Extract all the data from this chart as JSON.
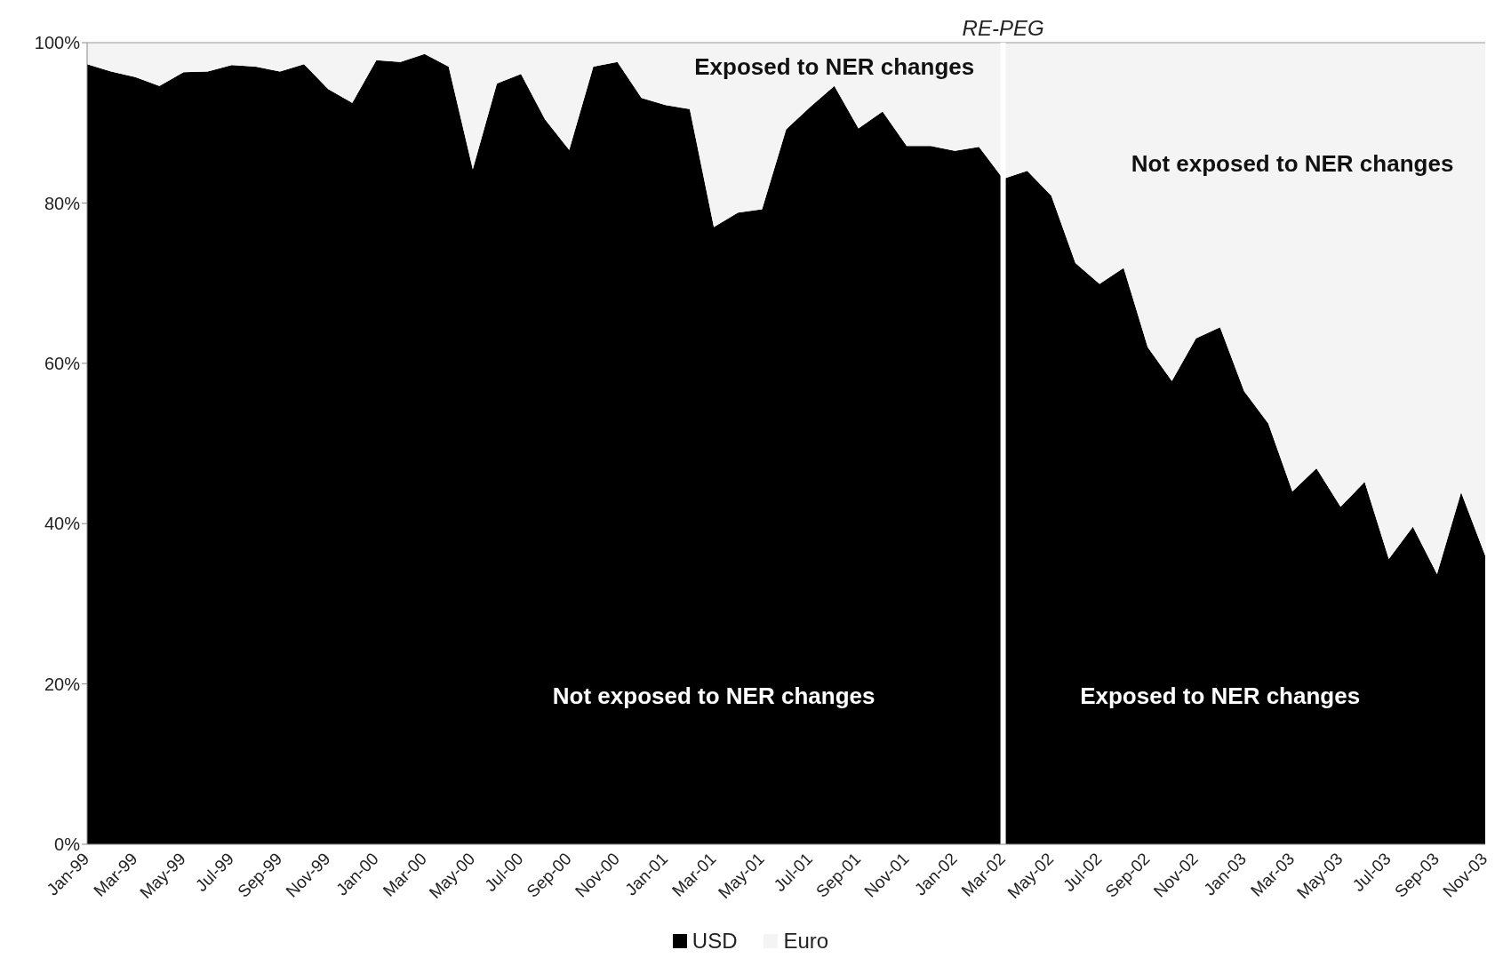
{
  "chart_data": {
    "type": "area",
    "stacked": true,
    "categories": [
      "Jan-99",
      null,
      "Mar-99",
      null,
      "May-99",
      null,
      "Jul-99",
      null,
      "Sep-99",
      null,
      "Nov-99",
      null,
      "Jan-00",
      null,
      "Mar-00",
      null,
      "May-00",
      null,
      "Jul-00",
      null,
      "Sep-00",
      null,
      "Nov-00",
      null,
      "Jan-01",
      null,
      "Mar-01",
      null,
      "May-01",
      null,
      "Jul-01",
      null,
      "Sep-01",
      null,
      "Nov-01",
      null,
      "Jan-02",
      null,
      "Mar-02",
      null,
      "May-02",
      null,
      "Jul-02",
      null,
      "Sep-02",
      null,
      "Nov-02",
      null,
      "Jan-03",
      null,
      "Mar-03",
      null,
      "May-03",
      null,
      "Jul-03",
      null,
      "Sep-03",
      null,
      "Nov-03"
    ],
    "series": [
      {
        "name": "USD",
        "color": "#000000",
        "values": [
          97.3,
          96.4,
          95.7,
          94.6,
          96.3,
          96.4,
          97.2,
          97.0,
          96.4,
          97.3,
          94.2,
          92.5,
          97.8,
          97.6,
          98.6,
          97.0,
          84.2,
          94.9,
          96.1,
          90.4,
          86.6,
          97.0,
          97.6,
          93.1,
          92.2,
          91.7,
          77.0,
          78.8,
          79.2,
          89.2,
          92.0,
          94.6,
          89.3,
          91.4,
          87.1,
          87.1,
          86.5,
          87.0,
          83.0,
          84.0,
          80.9,
          72.5,
          69.9,
          71.9,
          62.0,
          57.8,
          63.1,
          64.5,
          56.5,
          52.5,
          44.0,
          46.9,
          42.1,
          45.2,
          35.6,
          39.6,
          33.7,
          43.9,
          36.0
        ]
      },
      {
        "name": "Euro",
        "color": "#f4f4f4",
        "values": [
          2.7,
          3.6,
          4.3,
          5.4,
          3.7,
          3.6,
          2.8,
          3.0,
          3.6,
          2.7,
          5.8,
          7.5,
          2.2,
          2.4,
          1.4,
          3.0,
          15.8,
          5.1,
          3.9,
          9.6,
          13.4,
          3.0,
          2.4,
          6.9,
          7.8,
          8.3,
          23.0,
          21.2,
          20.8,
          10.8,
          8.0,
          5.4,
          10.7,
          8.6,
          12.9,
          12.9,
          13.5,
          13.0,
          17.0,
          16.0,
          19.1,
          27.5,
          30.1,
          28.1,
          38.0,
          42.2,
          36.9,
          35.5,
          43.5,
          47.5,
          56.0,
          53.1,
          57.9,
          54.8,
          64.4,
          60.4,
          66.3,
          56.1,
          64.0
        ]
      }
    ],
    "ylim": [
      0,
      100
    ],
    "yticks": [
      {
        "value": 0,
        "label": "0%"
      },
      {
        "value": 20,
        "label": "20%"
      },
      {
        "value": 40,
        "label": "40%"
      },
      {
        "value": 60,
        "label": "60%"
      },
      {
        "value": 80,
        "label": "80%"
      },
      {
        "value": 100,
        "label": "100%"
      }
    ],
    "grid": false,
    "legend": "bottom",
    "ref_lines": [
      {
        "axis": "x",
        "value": "Mar-02",
        "label": "RE-PEG",
        "color": "#ffffff"
      }
    ],
    "annotations": [
      "Exposed to NER changes",
      "Not exposed to NER changes",
      "Not exposed to NER changes",
      "Exposed to NER changes"
    ]
  }
}
